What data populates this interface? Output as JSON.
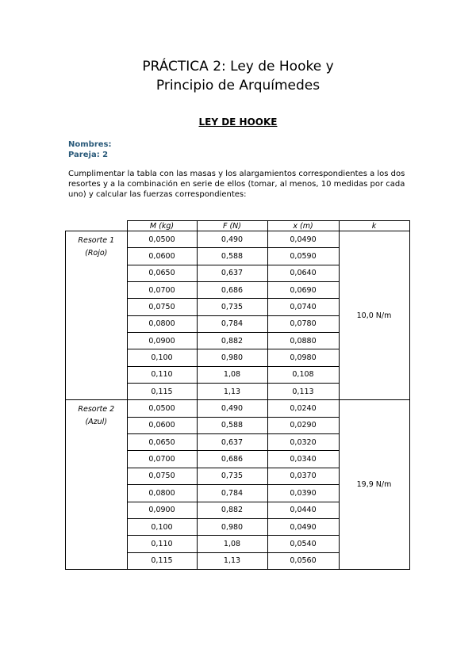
{
  "title_line1": "PRÁCTICA 2: Ley de Hooke y",
  "title_line2": "Principio de Arquímedes",
  "section_heading": "LEY DE HOOKE",
  "nombres_label": "Nombres:",
  "pareja_label": "Pareja: 2",
  "instructions": "Cumplimentar la tabla con las masas y los alargamientos correspondientes a los dos resortes y a la combinación en serie de ellos (tomar, al menos, 10 medidas por cada uno) y calcular las fuerzas correspondientes:",
  "table": {
    "headers": [
      "M (kg)",
      "F (N)",
      "x (m)",
      "k"
    ],
    "groups": [
      {
        "name": "Resorte 1",
        "color": "(Rojo)",
        "k": "10,0 N/m",
        "rows": [
          [
            "0,0500",
            "0,490",
            "0,0490"
          ],
          [
            "0,0600",
            "0,588",
            "0,0590"
          ],
          [
            "0,0650",
            "0,637",
            "0,0640"
          ],
          [
            "0,0700",
            "0,686",
            "0,0690"
          ],
          [
            "0,0750",
            "0,735",
            "0,0740"
          ],
          [
            "0,0800",
            "0,784",
            "0,0780"
          ],
          [
            "0,0900",
            "0,882",
            "0,0880"
          ],
          [
            "0,100",
            "0,980",
            "0,0980"
          ],
          [
            "0,110",
            "1,08",
            "0,108"
          ],
          [
            "0,115",
            "1,13",
            "0,113"
          ]
        ]
      },
      {
        "name": "Resorte 2",
        "color": "(Azul)",
        "k": "19,9 N/m",
        "rows": [
          [
            "0,0500",
            "0,490",
            "0,0240"
          ],
          [
            "0,0600",
            "0,588",
            "0,0290"
          ],
          [
            "0,0650",
            "0,637",
            "0,0320"
          ],
          [
            "0,0700",
            "0,686",
            "0,0340"
          ],
          [
            "0,0750",
            "0,735",
            "0,0370"
          ],
          [
            "0,0800",
            "0,784",
            "0,0390"
          ],
          [
            "0,0900",
            "0,882",
            "0,0440"
          ],
          [
            "0,100",
            "0,980",
            "0,0490"
          ],
          [
            "0,110",
            "1,08",
            "0,0540"
          ],
          [
            "0,115",
            "1,13",
            "0,0560"
          ]
        ]
      }
    ]
  }
}
